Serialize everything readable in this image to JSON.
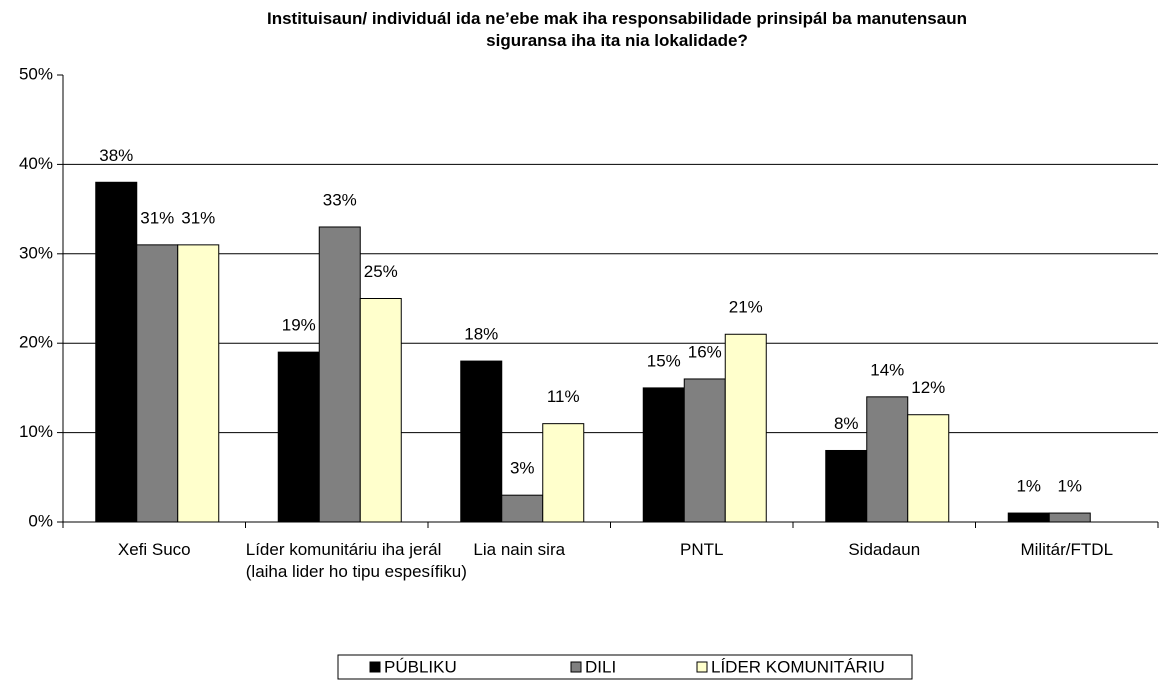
{
  "chart_data": {
    "type": "bar",
    "title": "Instituisaun/ individuál ida ne’ebe mak iha responsabilidade prinsipál ba manutensaun siguransa iha ita nia lokalidade?",
    "categories": [
      "Xefi Suco",
      "Líder komunitáriu iha jerál (laiha lider ho tipu espesífiku)",
      "Lia nain sira",
      "PNTL",
      "Sidadaun",
      "Militár/FTDL"
    ],
    "series": [
      {
        "name": "PÚBLIKU",
        "color": "#000000",
        "values": [
          38,
          19,
          18,
          15,
          8,
          1
        ],
        "value_labels": [
          "38%",
          "19%",
          "18%",
          "15%",
          "8%",
          "1%"
        ]
      },
      {
        "name": "DILI",
        "color": "#808080",
        "values": [
          31,
          33,
          3,
          16,
          14,
          1
        ],
        "value_labels": [
          "31%",
          "33%",
          "3%",
          "16%",
          "14%",
          "1%"
        ]
      },
      {
        "name": "LÍDER KOMUNITÁRIU",
        "color": "#ffffcc",
        "values": [
          31,
          25,
          11,
          21,
          12,
          null
        ],
        "value_labels": [
          "31%",
          "25%",
          "11%",
          "21%",
          "12%",
          null
        ]
      }
    ],
    "ylim": [
      0,
      50
    ],
    "yticks": [
      {
        "value": 0,
        "label": "0%"
      },
      {
        "value": 10,
        "label": "10%"
      },
      {
        "value": 20,
        "label": "20%"
      },
      {
        "value": 30,
        "label": "30%"
      },
      {
        "value": 40,
        "label": "40%"
      },
      {
        "value": 50,
        "label": "50%"
      }
    ],
    "grid": true,
    "legend": "bottom"
  }
}
